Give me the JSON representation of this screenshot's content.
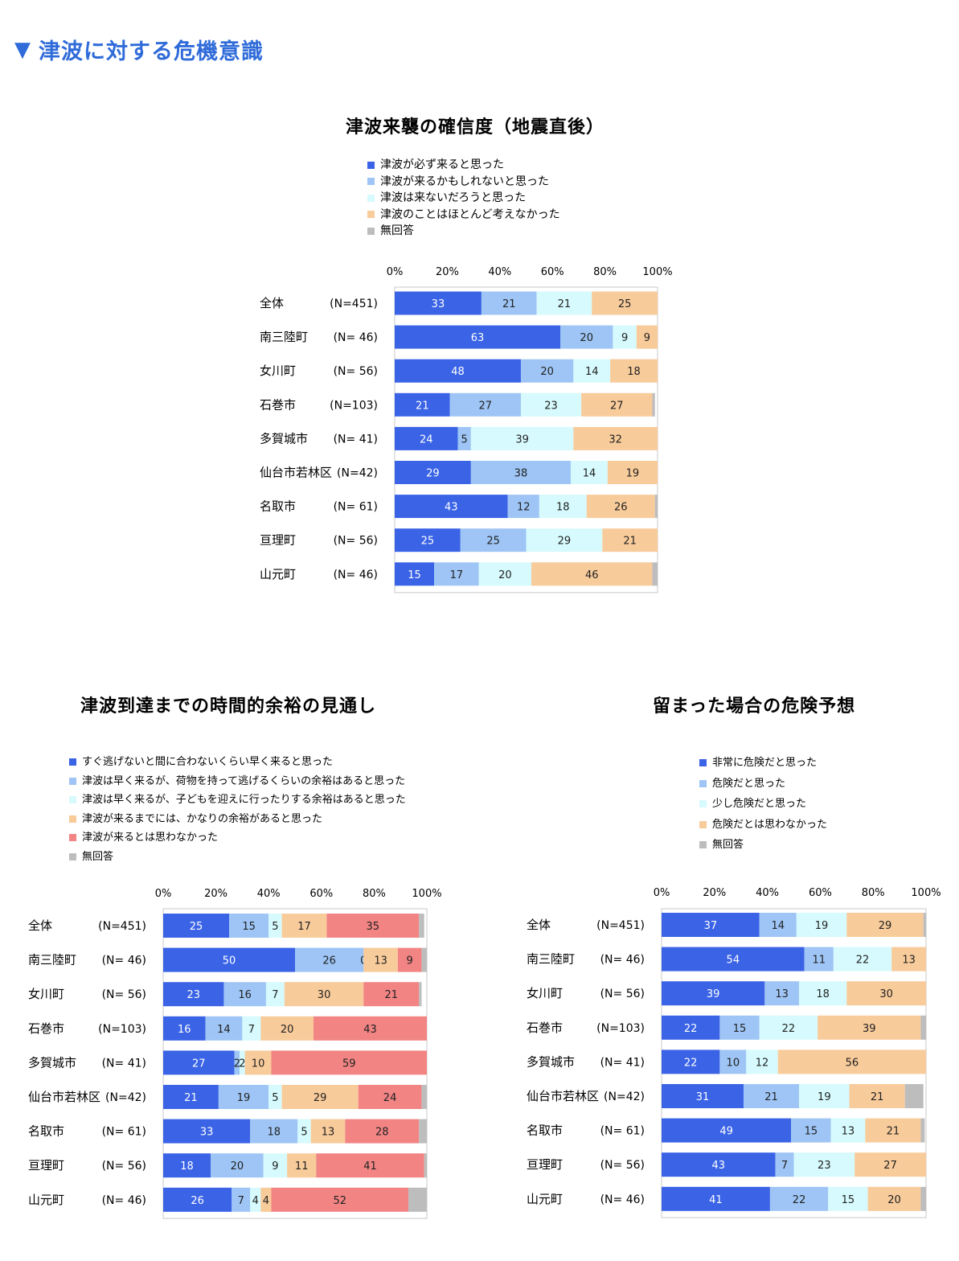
{
  "page": {
    "heading": "津波に対する危機意識"
  },
  "chart_data": [
    {
      "type": "bar",
      "orientation": "horizontal-stacked-100",
      "title": "津波来襲の確信度（地震直後）",
      "axis_ticks": [
        "0%",
        "20%",
        "40%",
        "60%",
        "80%",
        "100%"
      ],
      "categories": [
        "全体",
        "南三陸町",
        "女川町",
        "石巻市",
        "多賀城市",
        "仙台市若林区",
        "名取市",
        "亘理町",
        "山元町"
      ],
      "n_labels": [
        "(N=451)",
        "(N= 46)",
        "(N= 56)",
        "(N=103)",
        "(N= 41)",
        "(N=42)",
        "(N= 61)",
        "(N= 56)",
        "(N= 46)"
      ],
      "series": [
        {
          "name": "津波が必ず来ると思った",
          "color": "#3a63e6",
          "values": [
            33,
            63,
            48,
            21,
            24,
            29,
            43,
            25,
            15
          ]
        },
        {
          "name": "津波が来るかもしれないと思った",
          "color": "#9ec5f5",
          "values": [
            21,
            20,
            20,
            27,
            5,
            38,
            12,
            25,
            17
          ]
        },
        {
          "name": "津波は来ないだろうと思った",
          "color": "#d6fafd",
          "values": [
            21,
            9,
            14,
            23,
            39,
            14,
            18,
            29,
            20
          ]
        },
        {
          "name": "津波のことはほとんど考えなかった",
          "color": "#f8cb9b",
          "values": [
            25,
            9,
            18,
            27,
            32,
            19,
            26,
            21,
            46
          ]
        },
        {
          "name": "無回答",
          "color": "#bdbdbd",
          "values": [
            0.5,
            0,
            0,
            1,
            0,
            0,
            1.5,
            0,
            2
          ]
        }
      ],
      "label_series_count": 4,
      "xlim": [
        0,
        100
      ],
      "grid": false
    },
    {
      "type": "bar",
      "orientation": "horizontal-stacked-100",
      "title": "津波到達までの時間的余裕の見通し",
      "axis_ticks": [
        "0%",
        "20%",
        "40%",
        "60%",
        "80%",
        "100%"
      ],
      "categories": [
        "全体",
        "南三陸町",
        "女川町",
        "石巻市",
        "多賀城市",
        "仙台市若林区",
        "名取市",
        "亘理町",
        "山元町"
      ],
      "n_labels": [
        "(N=451)",
        "(N= 46)",
        "(N= 56)",
        "(N=103)",
        "(N= 41)",
        "(N=42)",
        "(N= 61)",
        "(N= 56)",
        "(N= 46)"
      ],
      "series": [
        {
          "name": "すぐ逃げないと間に合わないくらい早く来ると思った",
          "color": "#3a63e6",
          "values": [
            25,
            50,
            23,
            16,
            27,
            21,
            33,
            18,
            26
          ]
        },
        {
          "name": "津波は早く来るが、荷物を持って逃げるくらいの余裕はあると思った",
          "color": "#9ec5f5",
          "values": [
            15,
            26,
            16,
            14,
            2,
            19,
            18,
            20,
            7
          ]
        },
        {
          "name": "津波は早く来るが、子どもを迎えに行ったりする余裕はあると思った",
          "color": "#d6fafd",
          "values": [
            5,
            0,
            7,
            7,
            2,
            5,
            5,
            9,
            4
          ]
        },
        {
          "name": "津波が来るまでには、かなりの余裕があると思った",
          "color": "#f8cb9b",
          "values": [
            17,
            13,
            30,
            20,
            10,
            29,
            13,
            11,
            4
          ]
        },
        {
          "name": "津波が来るとは思わなかった",
          "color": "#f28484",
          "values": [
            35,
            9,
            21,
            43,
            59,
            24,
            28,
            41,
            52
          ]
        },
        {
          "name": "無回答",
          "color": "#bdbdbd",
          "values": [
            2,
            2,
            1,
            1,
            0,
            2,
            3,
            1,
            7
          ]
        }
      ],
      "label_series_count": 5,
      "xlim": [
        0,
        100
      ],
      "grid": false
    },
    {
      "type": "bar",
      "orientation": "horizontal-stacked-100",
      "title": "留まった場合の危険予想",
      "axis_ticks": [
        "0%",
        "20%",
        "40%",
        "60%",
        "80%",
        "100%"
      ],
      "categories": [
        "全体",
        "南三陸町",
        "女川町",
        "石巻市",
        "多賀城市",
        "仙台市若林区",
        "名取市",
        "亘理町",
        "山元町"
      ],
      "n_labels": [
        "(N=451)",
        "(N= 46)",
        "(N= 56)",
        "(N=103)",
        "(N= 41)",
        "(N=42)",
        "(N= 61)",
        "(N= 56)",
        "(N= 46)"
      ],
      "series": [
        {
          "name": "非常に危険だと思った",
          "color": "#3a63e6",
          "values": [
            37,
            54,
            39,
            22,
            22,
            31,
            49,
            43,
            41
          ]
        },
        {
          "name": "危険だと思った",
          "color": "#9ec5f5",
          "values": [
            14,
            11,
            13,
            15,
            10,
            21,
            15,
            7,
            22
          ]
        },
        {
          "name": "少し危険だと思った",
          "color": "#d6fafd",
          "values": [
            19,
            22,
            18,
            22,
            12,
            19,
            13,
            23,
            15
          ]
        },
        {
          "name": "危険だとは思わなかった",
          "color": "#f8cb9b",
          "values": [
            29,
            13,
            30,
            39,
            56,
            21,
            21,
            27,
            20
          ]
        },
        {
          "name": "無回答",
          "color": "#bdbdbd",
          "values": [
            1.5,
            0,
            0,
            2,
            0,
            7,
            1.5,
            0,
            2
          ]
        }
      ],
      "label_series_count": 4,
      "xlim": [
        0,
        100
      ],
      "grid": false
    }
  ]
}
